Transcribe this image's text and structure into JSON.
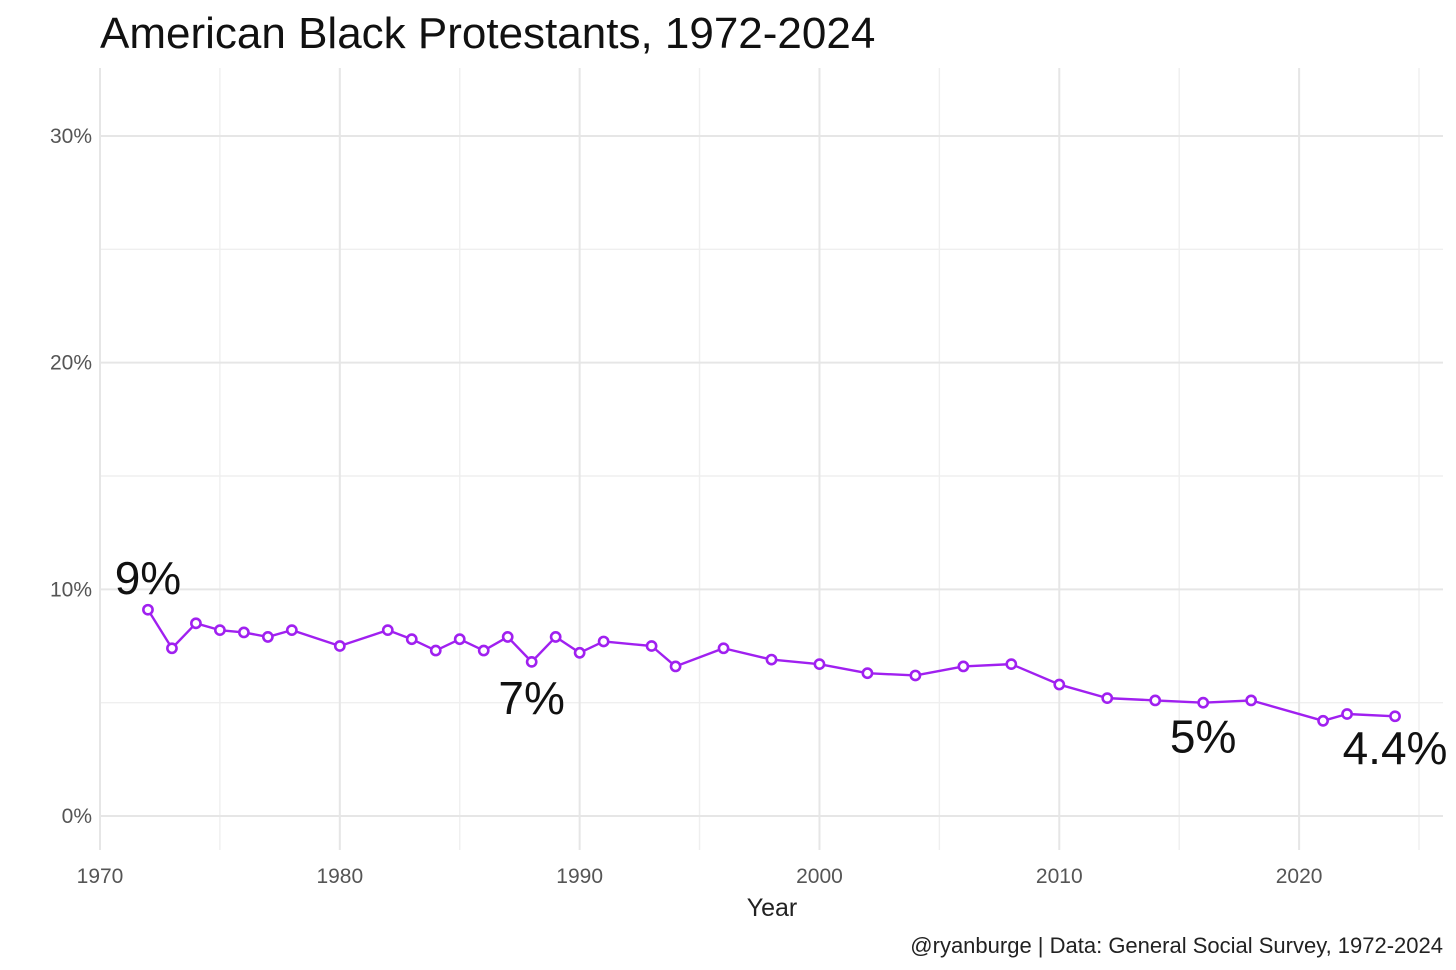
{
  "chart_data": {
    "type": "line",
    "title": "American Black Protestants, 1972-2024",
    "xlabel": "Year",
    "ylabel": "",
    "caption": "@ryanburge | Data: General Social Survey, 1972-2024",
    "xlim": [
      1970,
      2026
    ],
    "ylim": [
      -1.5,
      33
    ],
    "x_ticks": [
      1970,
      1980,
      1990,
      2000,
      2010,
      2020
    ],
    "x_tick_labels": [
      "1970",
      "1980",
      "1990",
      "2000",
      "2010",
      "2020"
    ],
    "y_ticks": [
      0,
      10,
      20,
      30
    ],
    "y_tick_labels": [
      "0%",
      "10%",
      "20%",
      "30%"
    ],
    "grid": true,
    "series": [
      {
        "name": "Black Protestants",
        "color": "#a020f0",
        "x": [
          1972,
          1973,
          1974,
          1975,
          1976,
          1977,
          1978,
          1980,
          1982,
          1983,
          1984,
          1985,
          1986,
          1987,
          1988,
          1989,
          1990,
          1991,
          1993,
          1994,
          1996,
          1998,
          2000,
          2002,
          2004,
          2006,
          2008,
          2010,
          2012,
          2014,
          2016,
          2018,
          2021,
          2022,
          2024
        ],
        "y": [
          9.1,
          7.4,
          8.5,
          8.2,
          8.1,
          7.9,
          8.2,
          7.5,
          8.2,
          7.8,
          7.3,
          7.8,
          7.3,
          7.9,
          6.8,
          7.9,
          7.2,
          7.7,
          7.5,
          6.6,
          7.4,
          6.9,
          6.7,
          6.3,
          6.2,
          6.6,
          6.7,
          5.8,
          5.2,
          5.1,
          5.0,
          5.1,
          4.2,
          4.5,
          4.4
        ]
      }
    ],
    "annotations": [
      {
        "text": "9%",
        "x": 1972,
        "y": 10.5
      },
      {
        "text": "7%",
        "x": 1988,
        "y": 5.2
      },
      {
        "text": "5%",
        "x": 2016,
        "y": 3.5
      },
      {
        "text": "4.4%",
        "x": 2024,
        "y": 3.0
      }
    ]
  }
}
